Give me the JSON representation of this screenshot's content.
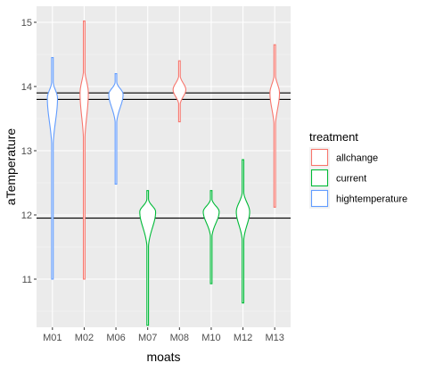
{
  "chart_data": {
    "type": "violin",
    "xlabel": "moats",
    "ylabel": "aTemperature",
    "ylim": [
      10.25,
      15.25
    ],
    "yticks": [
      11,
      12,
      13,
      14,
      15
    ],
    "categories": [
      "M01",
      "M02",
      "M06",
      "M07",
      "M08",
      "M10",
      "M12",
      "M13"
    ],
    "hlines": [
      13.9,
      13.8,
      11.95
    ],
    "grid": true,
    "legend": {
      "title": "treatment",
      "placement": "right",
      "entries": [
        {
          "name": "allchange",
          "color": "#F8766D"
        },
        {
          "name": "current",
          "color": "#00BA38"
        },
        {
          "name": "hightemperature",
          "color": "#619CFF"
        }
      ]
    },
    "violins": [
      {
        "category": "M01",
        "treatment": "hightemperature",
        "min": 11.0,
        "max": 14.45,
        "center": 13.82,
        "width": 0.32
      },
      {
        "category": "M02",
        "treatment": "allchange",
        "min": 11.0,
        "max": 15.02,
        "center": 13.9,
        "width": 0.26
      },
      {
        "category": "M06",
        "treatment": "hightemperature",
        "min": 12.48,
        "max": 14.2,
        "center": 13.88,
        "width": 0.45
      },
      {
        "category": "M07",
        "treatment": "current",
        "min": 10.28,
        "max": 12.38,
        "center": 12.05,
        "width": 0.5
      },
      {
        "category": "M08",
        "treatment": "allchange",
        "min": 13.45,
        "max": 14.4,
        "center": 13.95,
        "width": 0.4
      },
      {
        "category": "M10",
        "treatment": "current",
        "min": 10.93,
        "max": 12.38,
        "center": 12.05,
        "width": 0.5
      },
      {
        "category": "M12",
        "treatment": "current",
        "min": 10.63,
        "max": 12.86,
        "center": 12.05,
        "width": 0.42
      },
      {
        "category": "M13",
        "treatment": "allchange",
        "min": 12.12,
        "max": 14.65,
        "center": 13.9,
        "width": 0.3
      }
    ]
  }
}
